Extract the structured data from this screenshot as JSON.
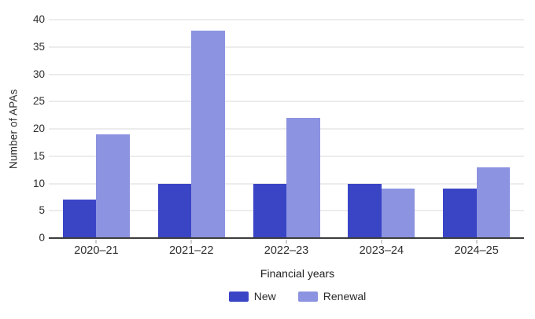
{
  "chart_data": {
    "type": "bar",
    "title": "",
    "categories": [
      "2020–21",
      "2021–22",
      "2022–23",
      "2023–24",
      "2024–25"
    ],
    "series": [
      {
        "name": "New",
        "color": "#3a45c6",
        "values": [
          7,
          10,
          10,
          10,
          9
        ]
      },
      {
        "name": "Renewal",
        "color": "#8c93e0",
        "values": [
          19,
          38,
          22,
          9,
          13
        ]
      }
    ],
    "xlabel": "Financial years",
    "ylabel": "Number of APAs",
    "ylim": [
      0,
      40
    ],
    "ytick_step": 5,
    "grid": true,
    "legend_position": "bottom"
  },
  "theme": {
    "background": "#ffffff",
    "grid_color": "#ececec",
    "axis_line_color": "#3d3d3d",
    "tick_mark_color": "#cfcfcf",
    "text_color": "#2b2b2b"
  }
}
